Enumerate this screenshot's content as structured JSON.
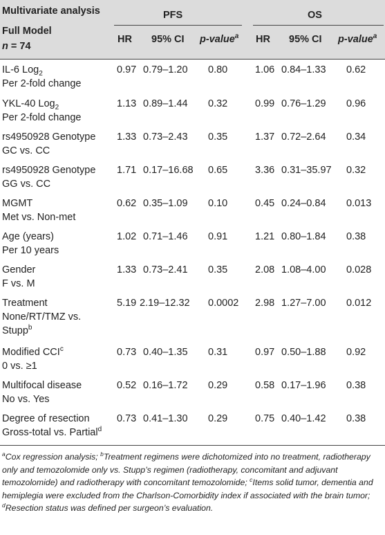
{
  "header": {
    "title_line1": "Multivariate analysis",
    "title_line2": "Full Model",
    "n_label": "n",
    "n_value": "= 74",
    "group_pfs": "PFS",
    "group_os": "OS",
    "col_hr": "HR",
    "col_ci": "95% CI",
    "col_p": "p-value",
    "col_p_sup": "a"
  },
  "rows": [
    {
      "l1": "IL-6 Log",
      "l1_sub": "2",
      "l2": "Per 2-fold change",
      "l2_sup": "",
      "pfs_hr": "0.97",
      "pfs_ci": "0.79–1.20",
      "pfs_p": "0.80",
      "os_hr": "1.06",
      "os_ci": "0.84–1.33",
      "os_p": "0.62"
    },
    {
      "l1": "YKL-40 Log",
      "l1_sub": "2",
      "l2": "Per 2-fold change",
      "l2_sup": "",
      "pfs_hr": "1.13",
      "pfs_ci": "0.89–1.44",
      "pfs_p": "0.32",
      "os_hr": "0.99",
      "os_ci": "0.76–1.29",
      "os_p": "0.96"
    },
    {
      "l1": "rs4950928 Genotype",
      "l1_sub": "",
      "l2": "GC vs. CC",
      "l2_sup": "",
      "pfs_hr": "1.33",
      "pfs_ci": "0.73–2.43",
      "pfs_p": "0.35",
      "os_hr": "1.37",
      "os_ci": "0.72–2.64",
      "os_p": "0.34"
    },
    {
      "l1": "rs4950928 Genotype",
      "l1_sub": "",
      "l2": "GG vs. CC",
      "l2_sup": "",
      "pfs_hr": "1.71",
      "pfs_ci": "0.17–16.68",
      "pfs_p": "0.65",
      "os_hr": "3.36",
      "os_ci": "0.31–35.97",
      "os_p": "0.32"
    },
    {
      "l1": "MGMT",
      "l1_sub": "",
      "l2": "Met vs. Non-met",
      "l2_sup": "",
      "pfs_hr": "0.62",
      "pfs_ci": "0.35–1.09",
      "pfs_p": "0.10",
      "os_hr": "0.45",
      "os_ci": "0.24–0.84",
      "os_p": "0.013"
    },
    {
      "l1": "Age (years)",
      "l1_sub": "",
      "l2": "Per 10 years",
      "l2_sup": "",
      "pfs_hr": "1.02",
      "pfs_ci": "0.71–1.46",
      "pfs_p": "0.91",
      "os_hr": "1.21",
      "os_ci": "0.80–1.84",
      "os_p": "0.38"
    },
    {
      "l1": "Gender",
      "l1_sub": "",
      "l2": "F vs. M",
      "l2_sup": "",
      "pfs_hr": "1.33",
      "pfs_ci": "0.73–2.41",
      "pfs_p": "0.35",
      "os_hr": "2.08",
      "os_ci": "1.08–4.00",
      "os_p": "0.028"
    }
  ],
  "treatment_row": {
    "l1": "Treatment",
    "l2": "None/RT/TMZ vs.",
    "l3": "Stupp",
    "l3_sup": "b",
    "pfs_hr": "5.19",
    "pfs_ci": "2.19–12.32",
    "pfs_p": "0.0002",
    "os_hr": "2.98",
    "os_ci": "1.27–7.00",
    "os_p": "0.012"
  },
  "rows2": [
    {
      "l1": "Modified CCI",
      "l1_sup": "c",
      "l2": "0 vs. ≥1",
      "l2_sup": "",
      "pfs_hr": "0.73",
      "pfs_ci": "0.40–1.35",
      "pfs_p": "0.31",
      "os_hr": "0.97",
      "os_ci": "0.50–1.88",
      "os_p": "0.92"
    },
    {
      "l1": "Multifocal disease",
      "l1_sup": "",
      "l2": "No vs. Yes",
      "l2_sup": "",
      "pfs_hr": "0.52",
      "pfs_ci": "0.16–1.72",
      "pfs_p": "0.29",
      "os_hr": "0.58",
      "os_ci": "0.17–1.96",
      "os_p": "0.38"
    },
    {
      "l1": "Degree of resection",
      "l1_sup": "",
      "l2": "Gross-total vs. Partial",
      "l2_sup": "d",
      "pfs_hr": "0.73",
      "pfs_ci": "0.41–1.30",
      "pfs_p": "0.29",
      "os_hr": "0.75",
      "os_ci": "0.40–1.42",
      "os_p": "0.38"
    }
  ],
  "footnotes": {
    "a_mark": "a",
    "a_text": "Cox regression analysis; ",
    "b_mark": "b",
    "b_text": "Treatment regimens were dichotomized into no treatment, radiotherapy only and temozolomide only vs. Stupp’s regimen (radiotherapy, concomitant and adjuvant temozolomide) and radiotherapy with concomitant temozolomide; ",
    "c_mark": "c",
    "c_text": "Items solid tumor, dementia and hemiplegia were excluded from the Charlson-Comorbidity index if associated with the brain tumor; ",
    "d_mark": "d",
    "d_text": "Resection status was defined per surgeon’s evaluation."
  }
}
